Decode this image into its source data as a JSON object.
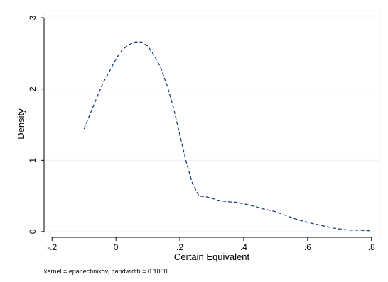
{
  "chart_data": {
    "type": "line",
    "title": "",
    "xlabel": "Certain Equivalent",
    "ylabel": "Density",
    "note": "kernel = epanechnikov, bandwidth = 0.1000",
    "xlim": [
      -0.225,
      0.825
    ],
    "ylim": [
      -0.08,
      3.1
    ],
    "x_ticks": [
      -0.2,
      0,
      0.2,
      0.4,
      0.6,
      0.8
    ],
    "x_tick_labels": [
      "-.2",
      "0",
      ".2",
      ".4",
      ".6",
      ".8"
    ],
    "y_ticks": [
      0,
      1,
      2,
      3
    ],
    "y_tick_labels": [
      "0",
      "1",
      "2",
      "3"
    ],
    "grid": true,
    "line_style": "dashed",
    "line_color": "#1a3e7a",
    "series": [
      {
        "x": [
          -0.1,
          -0.08,
          -0.06,
          -0.04,
          -0.02,
          0.0,
          0.02,
          0.04,
          0.06,
          0.08,
          0.1,
          0.12,
          0.14,
          0.16,
          0.18,
          0.2,
          0.22,
          0.24,
          0.26,
          0.28,
          0.3,
          0.32,
          0.35,
          0.38,
          0.4,
          0.43,
          0.46,
          0.5,
          0.53,
          0.56,
          0.6,
          0.64,
          0.68,
          0.71,
          0.73,
          0.76,
          0.8
        ],
        "y": [
          1.44,
          1.66,
          1.88,
          2.09,
          2.25,
          2.42,
          2.55,
          2.62,
          2.66,
          2.66,
          2.6,
          2.47,
          2.3,
          2.05,
          1.74,
          1.36,
          0.98,
          0.67,
          0.5,
          0.49,
          0.47,
          0.44,
          0.42,
          0.41,
          0.39,
          0.36,
          0.32,
          0.28,
          0.23,
          0.18,
          0.13,
          0.09,
          0.05,
          0.03,
          0.02,
          0.02,
          0.01
        ]
      }
    ]
  }
}
